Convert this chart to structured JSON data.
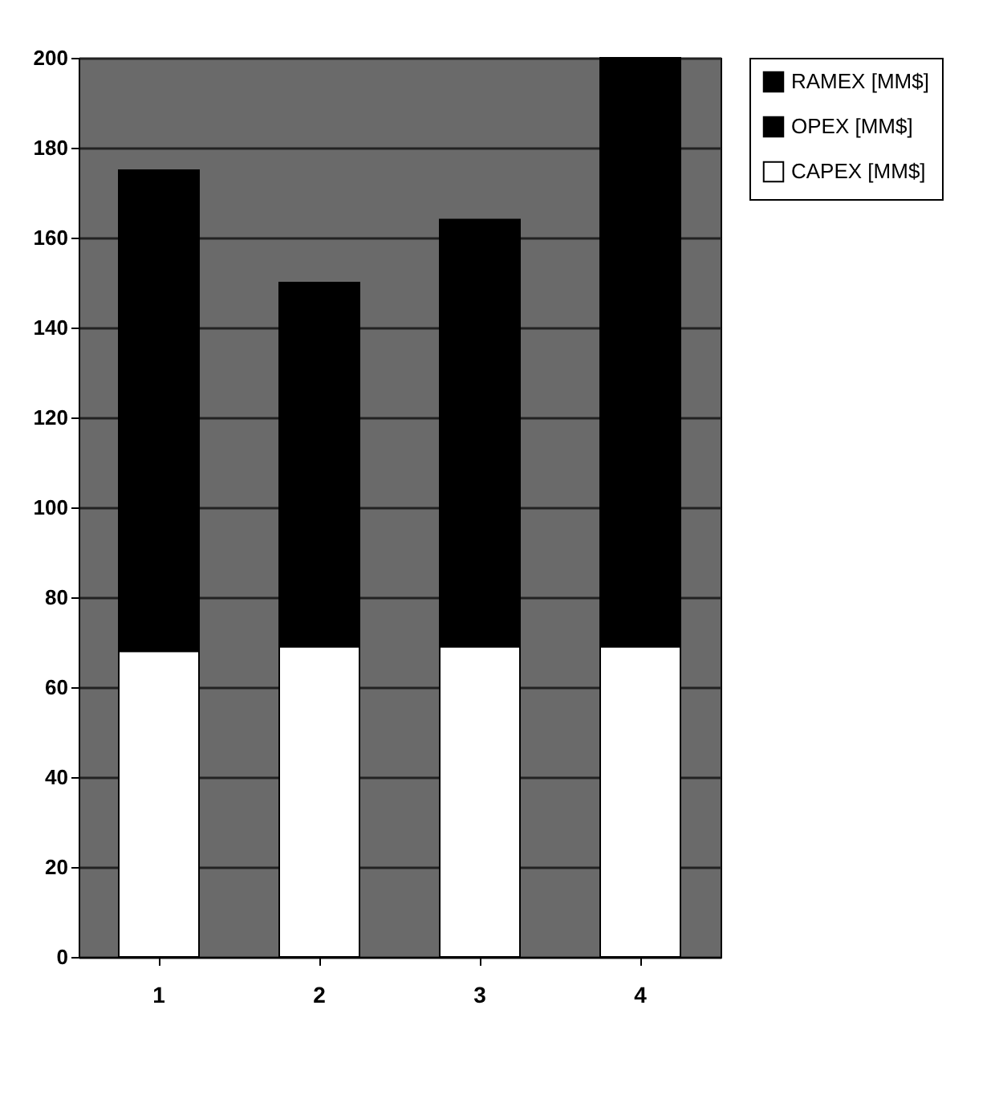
{
  "chart_data": {
    "type": "bar",
    "stacked": true,
    "categories": [
      "1",
      "2",
      "3",
      "4"
    ],
    "series": [
      {
        "name": "CAPEX [MM$]",
        "color": "#ffffff",
        "values": [
          68,
          69,
          69,
          69
        ]
      },
      {
        "name": "OPEX [MM$]",
        "color": "#000000",
        "values": [
          107,
          81,
          95,
          131
        ]
      },
      {
        "name": "RAMEX [MM$]",
        "color": "#000000",
        "values": [
          null,
          null,
          null,
          null
        ]
      }
    ],
    "ylim": [
      0,
      200
    ],
    "yticks": [
      0,
      20,
      40,
      60,
      80,
      100,
      120,
      140,
      160,
      180,
      200
    ],
    "grid": true,
    "legend": "right"
  }
}
